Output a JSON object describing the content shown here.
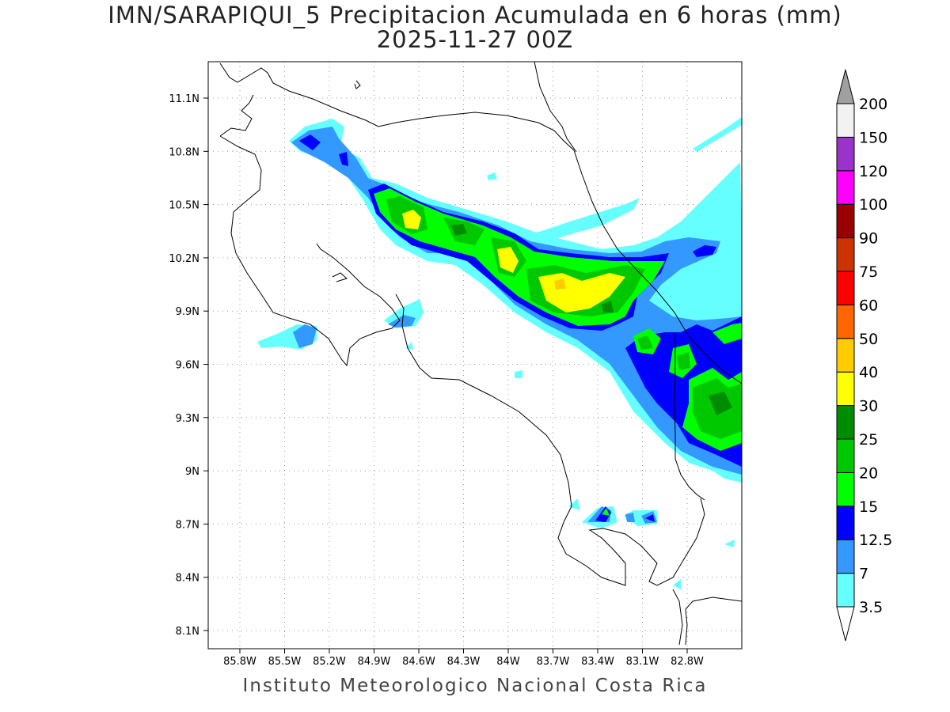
{
  "header": {
    "title": "IMN/SARAPIQUI_5 Precipitacion Acumulada en 6 horas (mm)",
    "subtitle": "2025-11-27 00Z"
  },
  "footer": "Instituto Meteorologico Nacional Costa Rica",
  "map": {
    "lon_ticks": [
      "85.8W",
      "85.5W",
      "85.2W",
      "84.9W",
      "84.6W",
      "84.3W",
      "84W",
      "83.7W",
      "83.4W",
      "83.1W",
      "82.8W"
    ],
    "lat_ticks": [
      "11.1N",
      "10.8N",
      "10.5N",
      "10.2N",
      "9.9N",
      "9.6N",
      "9.3N",
      "9N",
      "8.7N",
      "8.4N",
      "8.1N"
    ]
  },
  "colorbar": {
    "labels": [
      "3.5",
      "7",
      "12.5",
      "15",
      "20",
      "25",
      "30",
      "40",
      "50",
      "60",
      "75",
      "90",
      "100",
      "120",
      "150",
      "200"
    ],
    "colors": [
      "#66ffff",
      "#3399ff",
      "#0000ff",
      "#00ff00",
      "#00c800",
      "#008c00",
      "#ffff00",
      "#ffcc00",
      "#ff6600",
      "#ff0000",
      "#cc3300",
      "#990000",
      "#ff00ff",
      "#9933cc",
      "#f2f2f2"
    ],
    "over_color": "#a0a0a0",
    "under_color": "#ffffff"
  }
}
